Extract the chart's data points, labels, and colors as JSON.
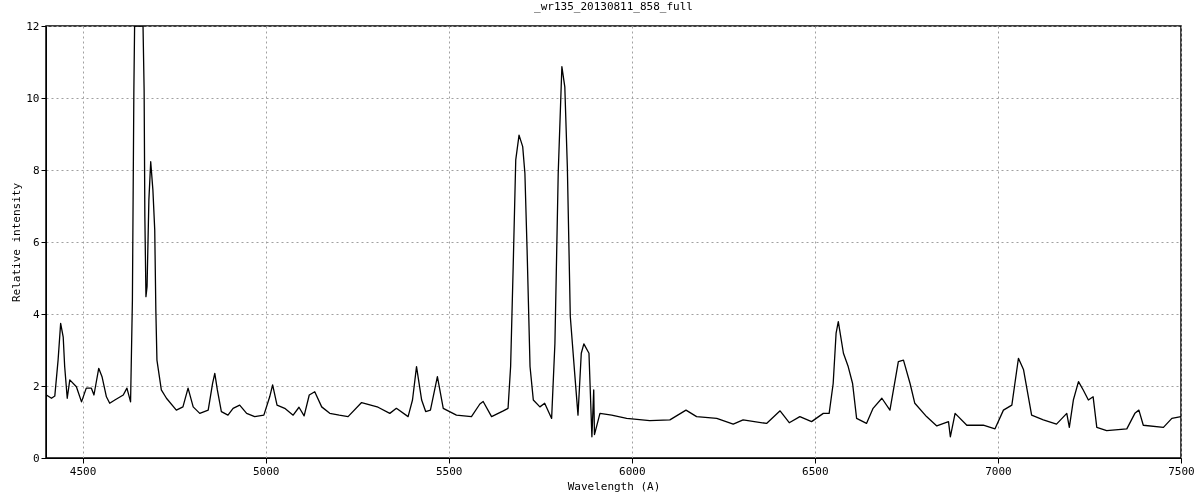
{
  "chart_data": {
    "type": "line",
    "title": "_wr135_20130811_858_full",
    "xlabel": "Wavelength (A)",
    "ylabel": "Relative intensity",
    "xlim": [
      4400,
      7500
    ],
    "xticks": [
      4500,
      5000,
      5500,
      6000,
      6500,
      7000,
      7500
    ],
    "ylim": [
      0,
      12
    ],
    "yticks": [
      0,
      2,
      4,
      6,
      8,
      10,
      12
    ],
    "grid": true,
    "line_style": "solid",
    "marker": "none",
    "series": [
      {
        "color": "#000000",
        "x": [
          4401,
          4415,
          4424,
          4433,
          4440,
          4447,
          4451,
          4458,
          4465,
          4483,
          4497,
          4510,
          4524,
          4531,
          4544,
          4553,
          4565,
          4574,
          4588,
          4611,
          4621,
          4631,
          4636,
          4640,
          4642,
          4665,
          4668,
          4670,
          4673,
          4676,
          4681,
          4686,
          4692,
          4697,
          4700,
          4703,
          4715,
          4729,
          4756,
          4774,
          4788,
          4802,
          4820,
          4843,
          4855,
          4861,
          4868,
          4879,
          4897,
          4911,
          4929,
          4948,
          4970,
          4995,
          5011,
          5019,
          5031,
          5052,
          5075,
          5091,
          5105,
          5119,
          5134,
          5153,
          5175,
          5201,
          5225,
          5262,
          5307,
          5339,
          5357,
          5389,
          5401,
          5412,
          5426,
          5437,
          5450,
          5469,
          5485,
          5521,
          5562,
          5585,
          5594,
          5617,
          5649,
          5662,
          5669,
          5676,
          5683,
          5692,
          5702,
          5708,
          5714,
          5722,
          5731,
          5749,
          5762,
          5781,
          5790,
          5799,
          5809,
          5817,
          5824,
          5832,
          5844,
          5853,
          5862,
          5869,
          5883,
          5891,
          5896,
          5898,
          5913,
          5945,
          5986,
          6049,
          6104,
          6148,
          6177,
          6232,
          6277,
          6304,
          6368,
          6405,
          6430,
          6459,
          6491,
          6523,
          6539,
          6550,
          6558,
          6564,
          6578,
          6591,
          6603,
          6614,
          6641,
          6659,
          6683,
          6705,
          6728,
          6742,
          6760,
          6773,
          6805,
          6833,
          6865,
          6870,
          6883,
          6915,
          6960,
          6992,
          7015,
          7038,
          7056,
          7070,
          7092,
          7124,
          7160,
          7188,
          7195,
          7206,
          7220,
          7233,
          7247,
          7260,
          7270,
          7297,
          7352,
          7374,
          7385,
          7397,
          7452,
          7475,
          7500
        ],
        "values": [
          1.75,
          1.66,
          1.72,
          2.72,
          3.74,
          3.36,
          2.54,
          1.66,
          2.17,
          1.98,
          1.56,
          1.94,
          1.94,
          1.75,
          2.49,
          2.26,
          1.7,
          1.52,
          1.61,
          1.75,
          1.94,
          1.56,
          4.39,
          10.22,
          12,
          12,
          10.22,
          6.7,
          4.48,
          4.76,
          7.17,
          8.23,
          7.44,
          6.33,
          4.11,
          2.72,
          1.89,
          1.66,
          1.33,
          1.42,
          1.94,
          1.42,
          1.24,
          1.33,
          2.07,
          2.35,
          1.89,
          1.29,
          1.19,
          1.38,
          1.47,
          1.24,
          1.15,
          1.19,
          1.7,
          2.03,
          1.47,
          1.38,
          1.19,
          1.41,
          1.17,
          1.75,
          1.84,
          1.42,
          1.24,
          1.19,
          1.15,
          1.54,
          1.41,
          1.24,
          1.38,
          1.15,
          1.61,
          2.54,
          1.61,
          1.29,
          1.33,
          2.26,
          1.38,
          1.19,
          1.15,
          1.5,
          1.57,
          1.15,
          1.31,
          1.38,
          2.54,
          5.31,
          8.28,
          8.97,
          8.65,
          7.91,
          5.78,
          2.54,
          1.61,
          1.42,
          1.52,
          1.1,
          3.19,
          7.91,
          10.87,
          10.31,
          8.06,
          3.93,
          2.35,
          1.19,
          2.91,
          3.17,
          2.91,
          0.59,
          1.89,
          0.65,
          1.24,
          1.19,
          1.1,
          1.04,
          1.06,
          1.33,
          1.15,
          1.1,
          0.94,
          1.06,
          0.96,
          1.31,
          0.98,
          1.15,
          1.01,
          1.24,
          1.24,
          2.07,
          3.47,
          3.79,
          2.91,
          2.54,
          2.07,
          1.1,
          0.96,
          1.38,
          1.66,
          1.33,
          2.68,
          2.72,
          2.07,
          1.52,
          1.15,
          0.89,
          1.01,
          0.59,
          1.24,
          0.91,
          0.91,
          0.81,
          1.33,
          1.47,
          2.77,
          2.45,
          1.19,
          1.06,
          0.94,
          1.24,
          0.85,
          1.61,
          2.12,
          1.89,
          1.61,
          1.7,
          0.85,
          0.76,
          0.81,
          1.24,
          1.33,
          0.91,
          0.85,
          1.1,
          1.15
        ]
      }
    ]
  }
}
